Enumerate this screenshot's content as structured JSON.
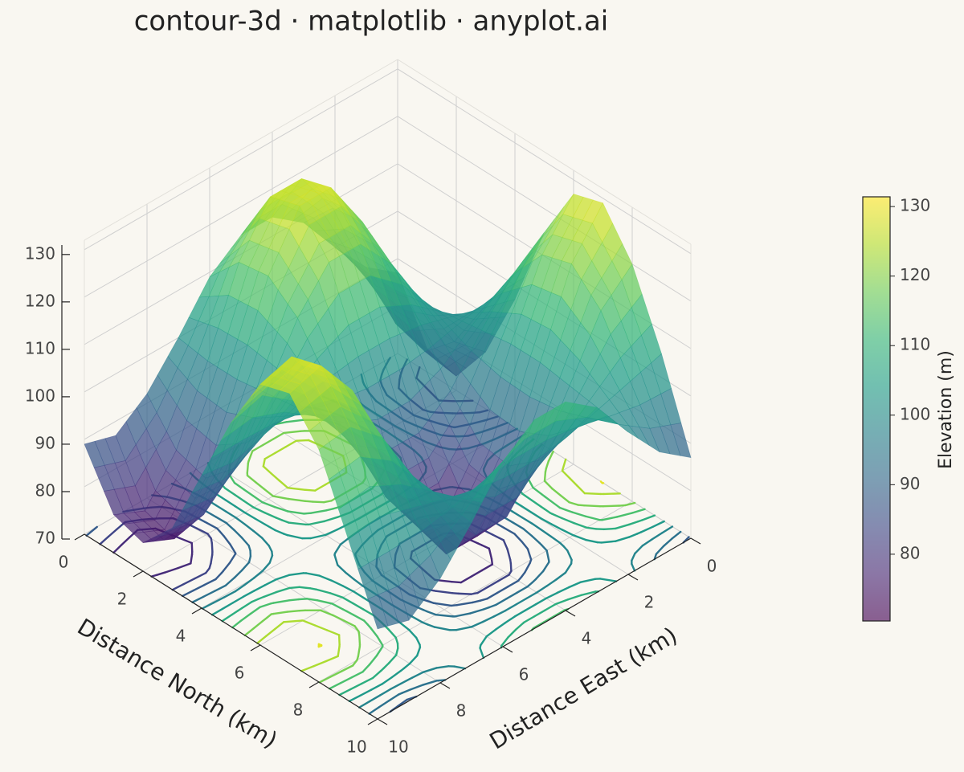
{
  "chart_data": {
    "type": "surface3d",
    "title": "contour-3d · matplotlib · anyplot.ai",
    "x_label": "Distance East (km)",
    "y_label": "Distance North (km)",
    "colorbar_label": "Elevation (m)",
    "x": [
      0,
      1,
      2,
      3,
      4,
      5,
      6,
      7,
      8,
      9,
      10
    ],
    "y": [
      0,
      1,
      2,
      3,
      4,
      5,
      6,
      7,
      8,
      9,
      10
    ],
    "z": [
      [
        87,
        92,
        100,
        109,
        114,
        114,
        109,
        100,
        92,
        87,
        89
      ],
      [
        75,
        84,
        99,
        116,
        126,
        126,
        116,
        99,
        84,
        75,
        78
      ],
      [
        73,
        82,
        99,
        117,
        128,
        128,
        117,
        99,
        82,
        73,
        76
      ],
      [
        82,
        88,
        100,
        112,
        120,
        120,
        112,
        100,
        88,
        82,
        83
      ],
      [
        97,
        99,
        101,
        103,
        104,
        104,
        103,
        101,
        99,
        97,
        98
      ],
      [
        115,
        110,
        102,
        93,
        88,
        88,
        93,
        102,
        110,
        115,
        113
      ],
      [
        127,
        118,
        103,
        86,
        76,
        76,
        86,
        103,
        118,
        127,
        125
      ],
      [
        129,
        120,
        103,
        85,
        74,
        74,
        85,
        103,
        120,
        129,
        127
      ],
      [
        120,
        114,
        102,
        90,
        82,
        82,
        90,
        102,
        114,
        120,
        119
      ],
      [
        105,
        103,
        101,
        99,
        98,
        98,
        99,
        101,
        103,
        105,
        104
      ],
      [
        87,
        92,
        100,
        109,
        114,
        114,
        109,
        100,
        92,
        87,
        89
      ]
    ],
    "xlim": [
      0,
      10
    ],
    "ylim": [
      0,
      10
    ],
    "zlim": [
      70,
      132
    ],
    "xticks": [
      0,
      2,
      4,
      6,
      8,
      10
    ],
    "yticks": [
      0,
      2,
      4,
      6,
      8,
      10
    ],
    "zticks": [
      70,
      80,
      90,
      100,
      110,
      120,
      130
    ],
    "clim": [
      70.4,
      131.4
    ],
    "cticks": [
      80,
      90,
      100,
      110,
      120,
      130
    ],
    "colormap": "viridis",
    "grid": true,
    "floor_contours": true
  }
}
